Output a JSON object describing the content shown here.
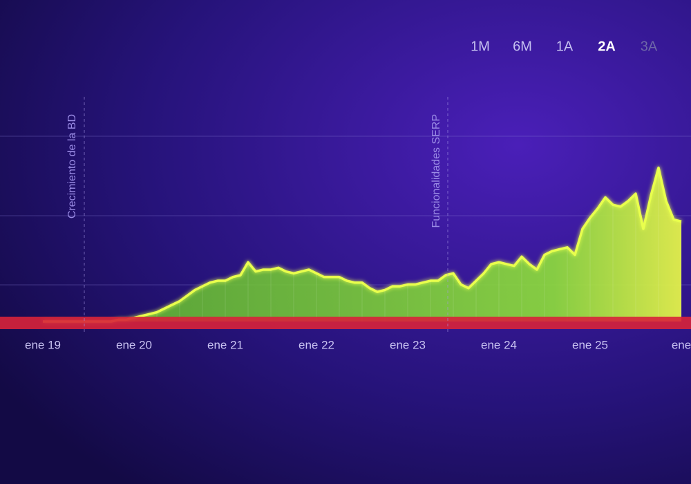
{
  "chart_data": {
    "type": "area",
    "range_buttons": [
      "1M",
      "6M",
      "1A",
      "2A",
      "3A"
    ],
    "active_range": "2A",
    "annotations": [
      "Crecimiento de la BD",
      "Funcionalidades SERP"
    ],
    "categories": [
      "ene 19",
      null,
      null,
      null,
      null,
      null,
      null,
      null,
      null,
      null,
      null,
      null,
      "ene 20",
      null,
      null,
      null,
      null,
      null,
      null,
      null,
      null,
      null,
      null,
      null,
      "ene 21",
      null,
      null,
      null,
      null,
      null,
      null,
      null,
      null,
      null,
      null,
      null,
      "ene 22",
      null,
      null,
      null,
      null,
      null,
      null,
      null,
      null,
      null,
      null,
      null,
      "ene 23",
      null,
      null,
      null,
      null,
      null,
      null,
      null,
      null,
      null,
      null,
      null,
      "ene 24",
      null,
      null,
      null,
      null,
      null,
      null,
      null,
      null,
      null,
      null,
      null,
      "ene 25",
      null,
      null,
      null,
      null,
      null,
      null,
      null,
      null,
      null,
      null,
      null,
      "ene"
    ],
    "values": [
      0,
      0,
      0,
      0,
      0,
      0,
      0,
      0,
      0,
      0,
      1,
      1,
      2,
      3,
      4,
      5,
      7,
      9,
      11,
      14,
      17,
      19,
      21,
      22,
      22,
      24,
      25,
      32,
      27,
      28,
      28,
      29,
      27,
      26,
      27,
      28,
      26,
      24,
      24,
      24,
      22,
      21,
      21,
      18,
      16,
      17,
      19,
      19,
      20,
      20,
      21,
      22,
      22,
      25,
      26,
      20,
      18,
      22,
      26,
      31,
      32,
      31,
      30,
      35,
      31,
      28,
      36,
      38,
      39,
      40,
      36,
      50,
      56,
      61,
      67,
      63,
      62,
      65,
      69,
      50,
      68,
      83,
      65,
      55,
      54
    ],
    "ylim": [
      0,
      100
    ],
    "color": "#e9ff4d"
  }
}
